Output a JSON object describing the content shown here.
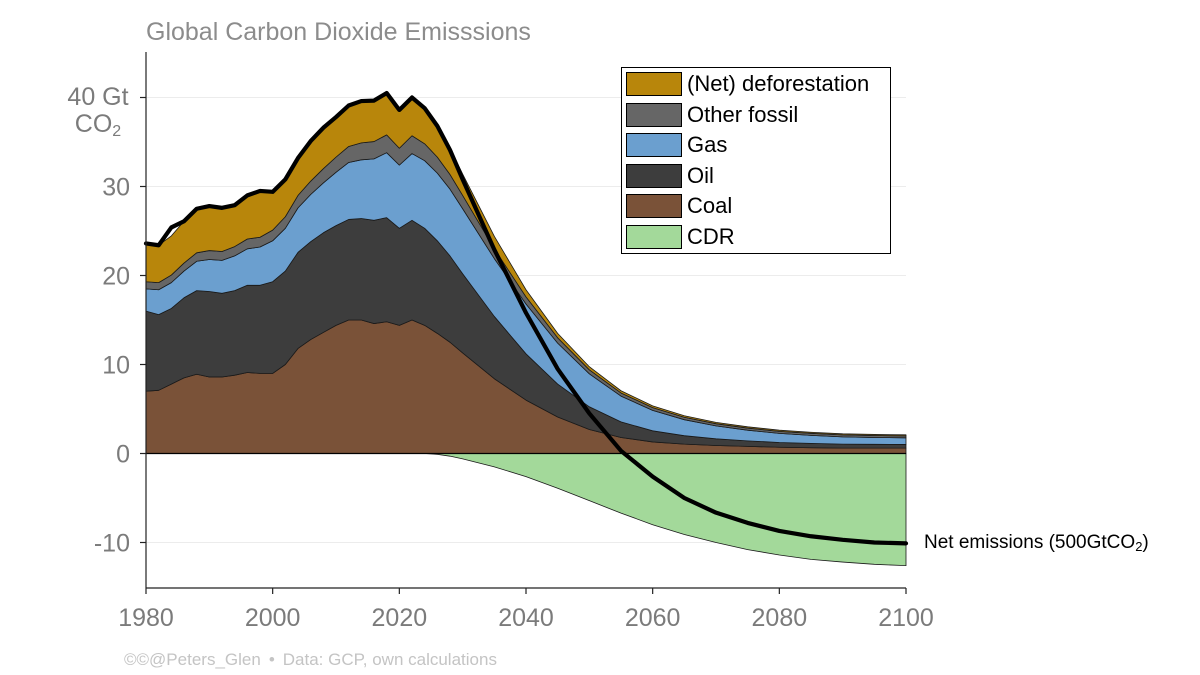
{
  "chart_data": {
    "type": "area",
    "title": "Global Carbon Dioxide Emisssions",
    "ylabel_line1": "40 Gt",
    "ylabel_line2": "CO",
    "ylabel_sub": "2",
    "xlim": [
      1980,
      2100
    ],
    "ylim": [
      -15,
      45
    ],
    "x_ticks": [
      1980,
      2000,
      2020,
      2040,
      2060,
      2080,
      2100
    ],
    "y_ticks": [
      {
        "value": 0,
        "label": "0"
      },
      {
        "value": 10,
        "label": "10"
      },
      {
        "value": 20,
        "label": "20"
      },
      {
        "value": 30,
        "label": "30"
      },
      {
        "value": -10,
        "label": "-10"
      }
    ],
    "grid": "horizontal",
    "legend_position": "top-right",
    "x": [
      1980,
      1982,
      1984,
      1986,
      1988,
      1990,
      1992,
      1994,
      1996,
      1998,
      2000,
      2002,
      2004,
      2006,
      2008,
      2010,
      2012,
      2014,
      2016,
      2018,
      2020,
      2022,
      2024,
      2026,
      2028,
      2030,
      2035,
      2040,
      2045,
      2050,
      2055,
      2060,
      2065,
      2070,
      2075,
      2080,
      2085,
      2090,
      2095,
      2100
    ],
    "series": [
      {
        "name": "Coal",
        "color": "#7a5238",
        "values": [
          7.0,
          7.1,
          7.8,
          8.5,
          8.9,
          8.6,
          8.6,
          8.8,
          9.1,
          9.0,
          9.0,
          10.0,
          11.8,
          12.8,
          13.6,
          14.4,
          15.0,
          15.0,
          14.6,
          14.8,
          14.4,
          15.0,
          14.4,
          13.5,
          12.5,
          11.3,
          8.4,
          6.0,
          4.1,
          2.7,
          1.8,
          1.3,
          1.05,
          0.9,
          0.8,
          0.7,
          0.65,
          0.6,
          0.6,
          0.6
        ]
      },
      {
        "name": "Oil",
        "color": "#3d3d3d",
        "values": [
          9.0,
          8.5,
          8.5,
          9.0,
          9.4,
          9.6,
          9.4,
          9.5,
          9.8,
          9.9,
          10.3,
          10.5,
          10.8,
          11.0,
          11.2,
          11.2,
          11.3,
          11.4,
          11.6,
          11.7,
          10.9,
          11.2,
          10.9,
          10.4,
          9.7,
          8.9,
          7.0,
          5.2,
          3.7,
          2.55,
          1.75,
          1.25,
          0.95,
          0.75,
          0.62,
          0.54,
          0.49,
          0.45,
          0.43,
          0.42
        ]
      },
      {
        "name": "Gas",
        "color": "#6b9fcf",
        "values": [
          2.5,
          2.8,
          2.9,
          3.0,
          3.3,
          3.6,
          3.7,
          3.9,
          4.1,
          4.3,
          4.6,
          4.8,
          5.0,
          5.3,
          5.6,
          6.0,
          6.4,
          6.6,
          6.9,
          7.3,
          7.1,
          7.5,
          7.6,
          7.6,
          7.5,
          7.3,
          6.5,
          5.6,
          4.6,
          3.7,
          2.9,
          2.3,
          1.8,
          1.45,
          1.2,
          1.02,
          0.9,
          0.82,
          0.77,
          0.74
        ]
      },
      {
        "name": "Other fossil",
        "color": "#666666",
        "values": [
          0.8,
          0.8,
          0.85,
          0.9,
          0.95,
          1.0,
          1.0,
          1.05,
          1.1,
          1.1,
          1.2,
          1.3,
          1.4,
          1.5,
          1.6,
          1.7,
          1.8,
          1.9,
          1.95,
          2.0,
          1.9,
          2.0,
          1.9,
          1.8,
          1.65,
          1.5,
          1.1,
          0.8,
          0.6,
          0.45,
          0.35,
          0.3,
          0.27,
          0.25,
          0.24,
          0.23,
          0.23,
          0.22,
          0.22,
          0.22
        ]
      },
      {
        "name": "(Net) deforestation",
        "color": "#b8860b",
        "values": [
          4.3,
          4.2,
          4.4,
          4.7,
          4.9,
          5.0,
          4.9,
          4.7,
          4.9,
          5.2,
          4.3,
          4.2,
          4.2,
          4.5,
          4.6,
          4.5,
          4.6,
          4.7,
          4.6,
          4.7,
          4.3,
          4.3,
          4.1,
          3.6,
          3.0,
          2.4,
          1.4,
          0.8,
          0.5,
          0.35,
          0.25,
          0.2,
          0.17,
          0.15,
          0.14,
          0.13,
          0.12,
          0.12,
          0.12,
          0.12
        ]
      },
      {
        "name": "CDR",
        "color": "#a3d99a",
        "values": [
          0,
          0,
          0,
          0,
          0,
          0,
          0,
          0,
          0,
          0,
          0,
          0,
          0,
          0,
          0,
          0,
          0,
          0,
          0,
          0,
          0,
          0,
          0,
          -0.1,
          -0.3,
          -0.6,
          -1.5,
          -2.6,
          -3.9,
          -5.3,
          -6.7,
          -8.0,
          -9.1,
          -10.0,
          -10.8,
          -11.4,
          -11.9,
          -12.2,
          -12.45,
          -12.6
        ]
      }
    ],
    "net_emissions": {
      "name": "Net emissions",
      "label": "Net emissions (500GtCO",
      "label_sub": "2",
      "label_end": ")",
      "values": [
        23.6,
        23.4,
        25.4,
        26.1,
        27.5,
        27.8,
        27.6,
        27.9,
        29.0,
        29.5,
        29.4,
        30.8,
        33.2,
        35.1,
        36.6,
        37.8,
        39.1,
        39.6,
        39.65,
        40.5,
        38.6,
        40.0,
        38.8,
        36.8,
        34.1,
        30.8,
        22.9,
        15.8,
        9.5,
        4.5,
        0.3,
        -2.6,
        -5.0,
        -6.65,
        -7.8,
        -8.7,
        -9.3,
        -9.7,
        -10.0,
        -10.1
      ]
    }
  },
  "footer": {
    "credit": "©©@Peters_Glen",
    "separator": "•",
    "source": "Data: GCP, own calculations"
  }
}
